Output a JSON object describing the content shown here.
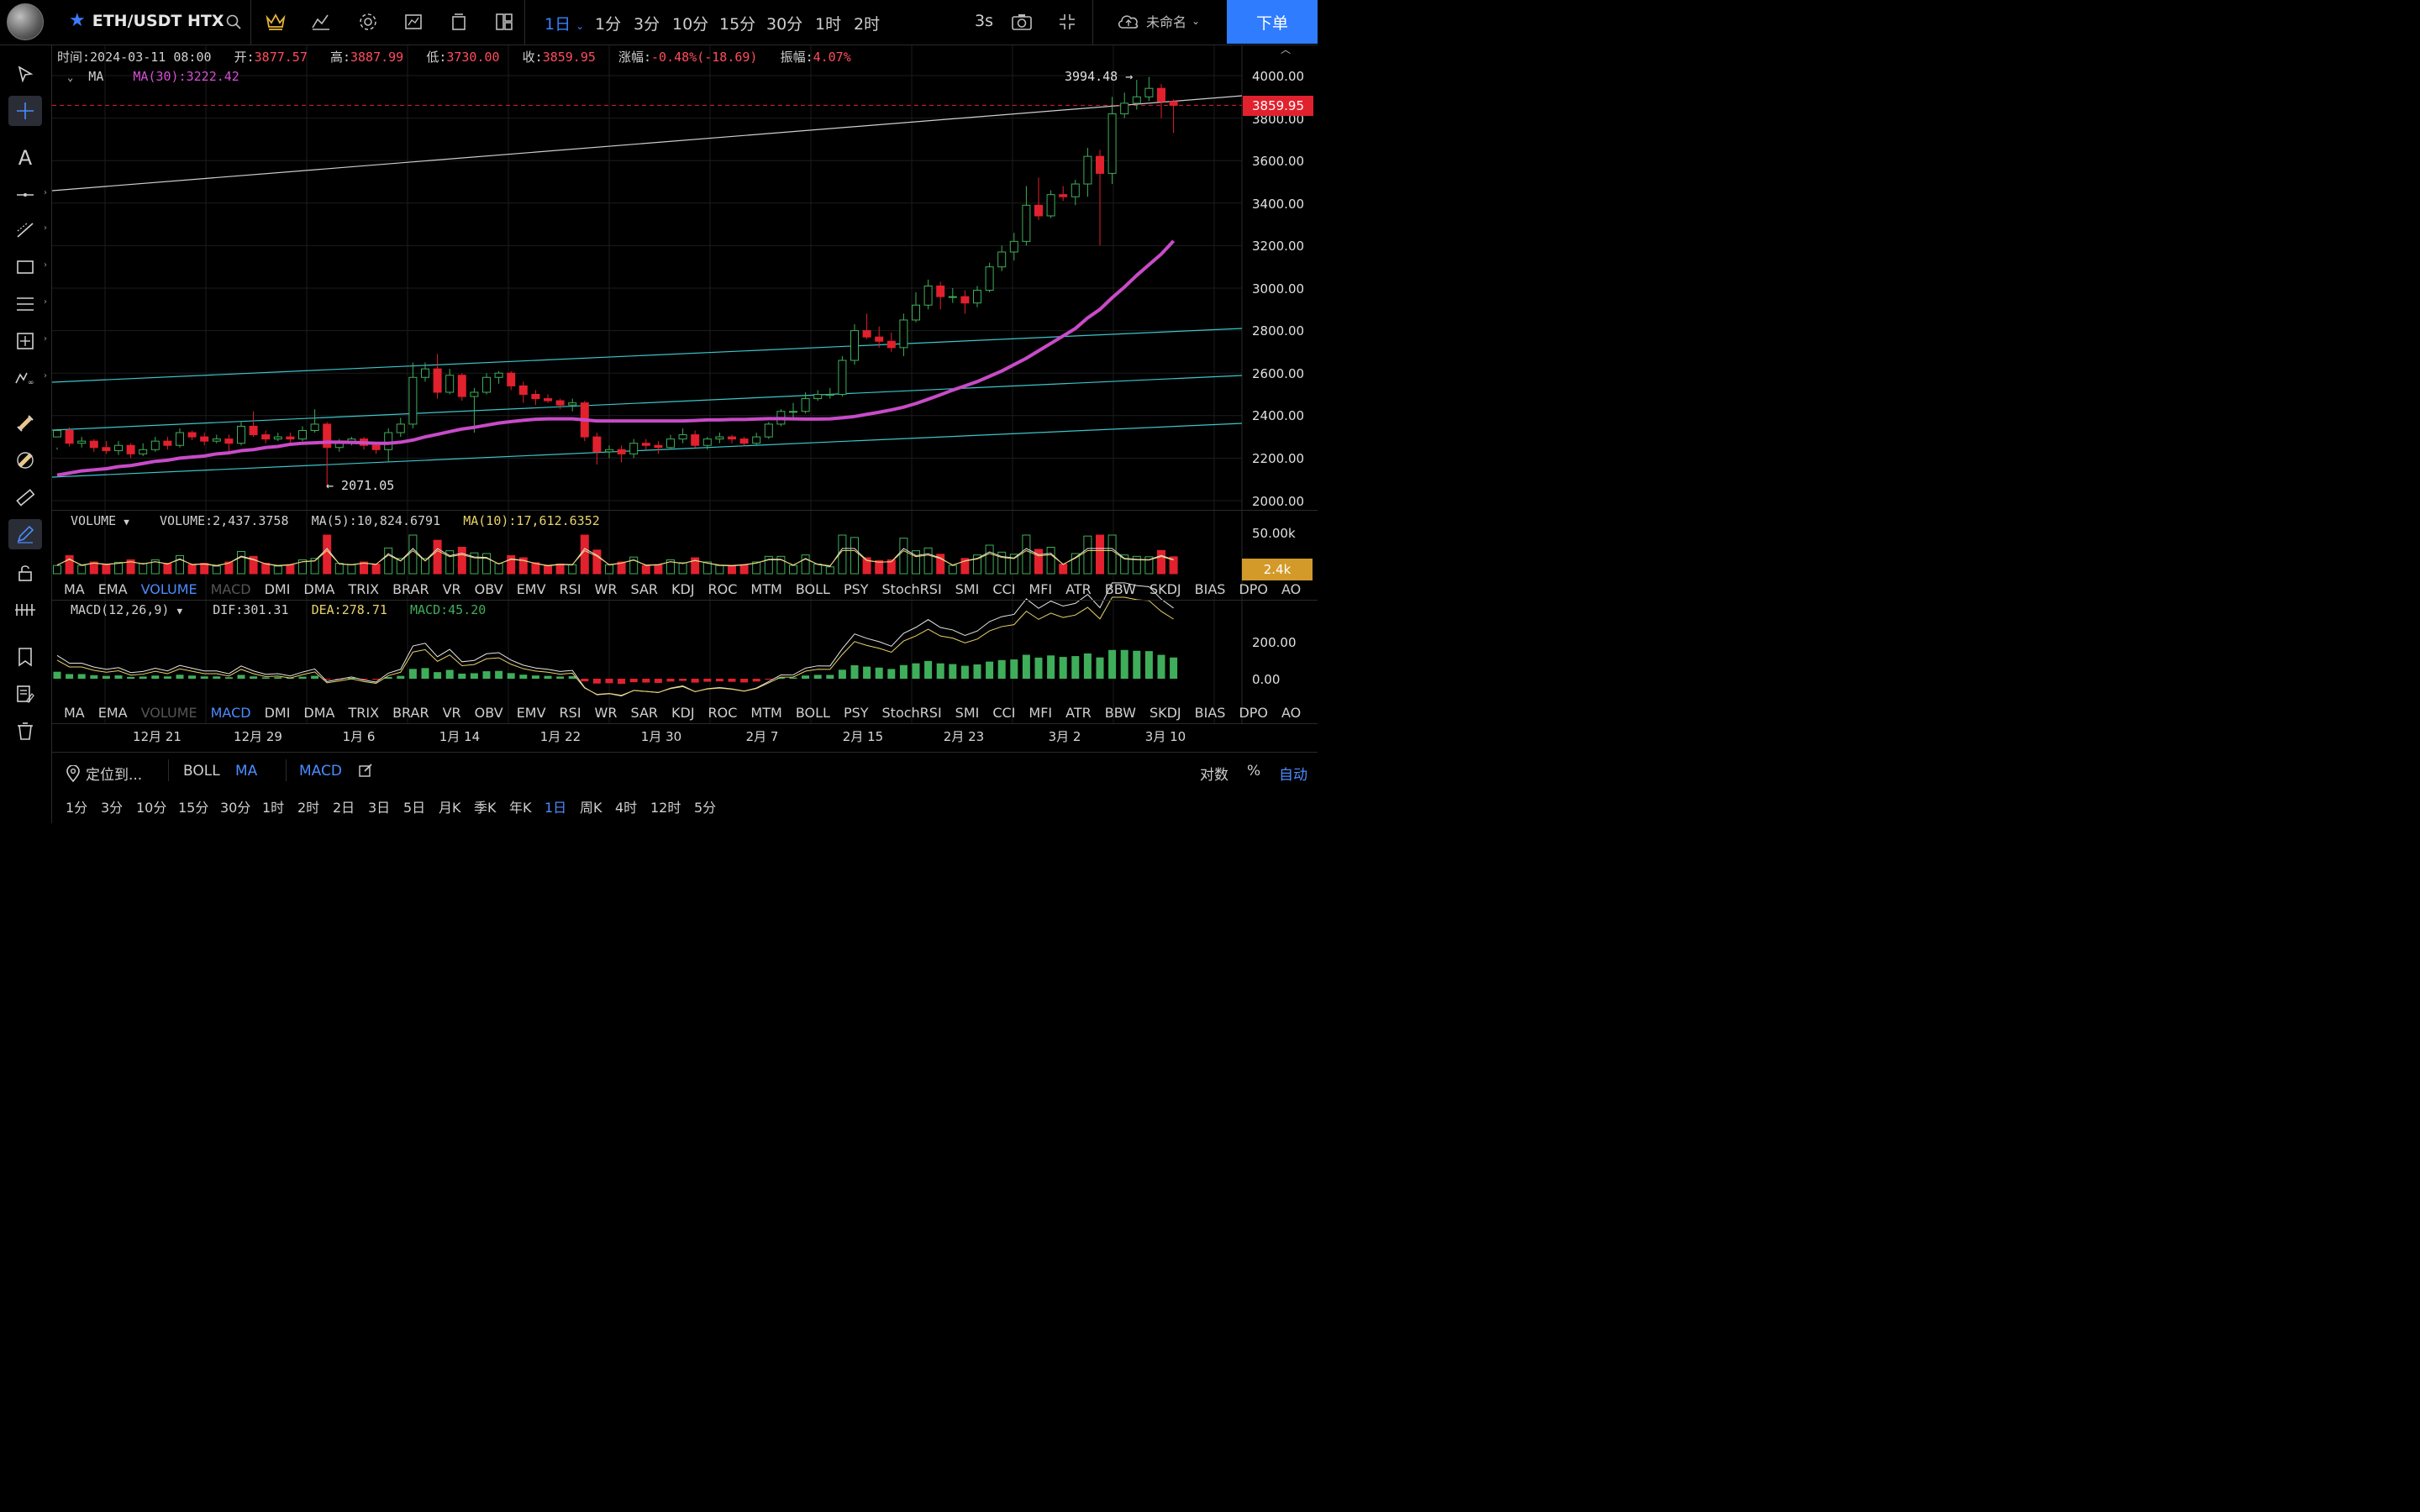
{
  "header": {
    "symbol": "ETH/USDT HTX",
    "timeframes": [
      "1日",
      "1分",
      "3分",
      "10分",
      "15分",
      "30分",
      "1时",
      "2时"
    ],
    "active_timeframe": "1日",
    "refresh": "3s",
    "cloud_name": "未命名",
    "order_button": "下单"
  },
  "legend": {
    "time_label": "时间:",
    "time": "2024-03-11 08:00",
    "open_label": "开:",
    "open": "3877.57",
    "high_label": "高:",
    "high": "3887.99",
    "low_label": "低:",
    "low": "3730.00",
    "close_label": "收:",
    "close": "3859.95",
    "change_label": "涨幅:",
    "change": "-0.48%(-18.69)",
    "amp_label": "振幅:",
    "amp": "4.07%",
    "ma_label": "MA",
    "ma_value": "MA(30):3222.42"
  },
  "price_axis": [
    "4000.00",
    "3800.00",
    "3600.00",
    "3400.00",
    "3200.00",
    "3000.00",
    "2800.00",
    "2600.00",
    "2400.00",
    "2200.00",
    "2000.00"
  ],
  "current_price": "3859.95",
  "annotations": {
    "high": "3994.48 →",
    "low": "← 2071.05"
  },
  "volume": {
    "label": "VOLUME",
    "value": "VOLUME:2,437.3758",
    "ma5": "MA(5):10,824.6791",
    "ma10": "MA(10):17,612.6352",
    "axis_top": "50.00k",
    "tag": "2.4k"
  },
  "macd": {
    "label": "MACD(12,26,9)",
    "dif": "DIF:301.31",
    "dea": "DEA:278.71",
    "macd": "MACD:45.20",
    "axis": [
      "200.00",
      "0.00"
    ]
  },
  "indicators": [
    "MA",
    "EMA",
    "VOLUME",
    "MACD",
    "DMI",
    "DMA",
    "TRIX",
    "BRAR",
    "VR",
    "OBV",
    "EMV",
    "RSI",
    "WR",
    "SAR",
    "KDJ",
    "ROC",
    "MTM",
    "BOLL",
    "PSY",
    "StochRSI",
    "SMI",
    "CCI",
    "MFI",
    "ATR",
    "BBW",
    "SKDJ",
    "BIAS",
    "DPO",
    "AO"
  ],
  "x_labels": [
    "12月 21",
    "12月 29",
    "1月 6",
    "1月 14",
    "1月 22",
    "1月 30",
    "2月 7",
    "2月 15",
    "2月 23",
    "3月 2",
    "3月 10"
  ],
  "bottom_bar": {
    "locate": "定位到...",
    "boll": "BOLL",
    "ma": "MA",
    "macd": "MACD",
    "log": "对数",
    "percent": "%",
    "auto": "自动"
  },
  "periods": [
    "1分",
    "3分",
    "10分",
    "15分",
    "30分",
    "1时",
    "2时",
    "2日",
    "3日",
    "5日",
    "月K",
    "季K",
    "年K",
    "1日",
    "周K",
    "4时",
    "12时",
    "5分"
  ],
  "active_period": "1日",
  "chart_data": {
    "type": "candlestick",
    "symbol": "ETH/USDT",
    "x_range": [
      "2023-12-15",
      "2024-03-11"
    ],
    "ylim": [
      2000,
      4000
    ],
    "candles": [
      [
        2300,
        2330,
        2250,
        2240
      ],
      [
        2330,
        2270,
        2345,
        2255
      ],
      [
        2270,
        2280,
        2300,
        2250
      ],
      [
        2280,
        2250,
        2290,
        2230
      ],
      [
        2250,
        2235,
        2280,
        2220
      ],
      [
        2235,
        2260,
        2280,
        2215
      ],
      [
        2260,
        2220,
        2270,
        2200
      ],
      [
        2220,
        2240,
        2270,
        2210
      ],
      [
        2240,
        2280,
        2300,
        2230
      ],
      [
        2280,
        2260,
        2300,
        2240
      ],
      [
        2260,
        2320,
        2340,
        2250
      ],
      [
        2320,
        2300,
        2330,
        2285
      ],
      [
        2300,
        2280,
        2320,
        2260
      ],
      [
        2280,
        2290,
        2310,
        2270
      ],
      [
        2290,
        2270,
        2310,
        2230
      ],
      [
        2270,
        2350,
        2370,
        2260
      ],
      [
        2350,
        2310,
        2420,
        2300
      ],
      [
        2310,
        2290,
        2330,
        2270
      ],
      [
        2290,
        2300,
        2320,
        2280
      ],
      [
        2300,
        2290,
        2320,
        2260
      ],
      [
        2290,
        2330,
        2350,
        2280
      ],
      [
        2330,
        2360,
        2430,
        2320
      ],
      [
        2360,
        2250,
        2370,
        2071
      ],
      [
        2250,
        2270,
        2290,
        2230
      ],
      [
        2270,
        2290,
        2300,
        2260
      ],
      [
        2290,
        2260,
        2300,
        2240
      ],
      [
        2260,
        2240,
        2270,
        2220
      ],
      [
        2240,
        2320,
        2340,
        2180
      ],
      [
        2320,
        2360,
        2390,
        2300
      ],
      [
        2360,
        2580,
        2650,
        2340
      ],
      [
        2580,
        2620,
        2650,
        2560
      ],
      [
        2620,
        2510,
        2690,
        2480
      ],
      [
        2510,
        2590,
        2620,
        2500
      ],
      [
        2590,
        2490,
        2600,
        2470
      ],
      [
        2490,
        2510,
        2530,
        2320
      ],
      [
        2510,
        2580,
        2600,
        2500
      ],
      [
        2580,
        2600,
        2610,
        2550
      ],
      [
        2600,
        2540,
        2610,
        2520
      ],
      [
        2540,
        2500,
        2560,
        2460
      ],
      [
        2500,
        2480,
        2520,
        2450
      ],
      [
        2480,
        2470,
        2500,
        2460
      ],
      [
        2470,
        2450,
        2480,
        2430
      ],
      [
        2450,
        2460,
        2480,
        2420
      ],
      [
        2460,
        2300,
        2470,
        2280
      ],
      [
        2300,
        2230,
        2320,
        2170
      ],
      [
        2230,
        2240,
        2260,
        2200
      ],
      [
        2240,
        2220,
        2260,
        2180
      ],
      [
        2220,
        2270,
        2290,
        2200
      ],
      [
        2270,
        2260,
        2290,
        2240
      ],
      [
        2260,
        2250,
        2280,
        2220
      ],
      [
        2250,
        2290,
        2310,
        2240
      ],
      [
        2290,
        2310,
        2340,
        2270
      ],
      [
        2310,
        2260,
        2330,
        2250
      ],
      [
        2260,
        2290,
        2300,
        2240
      ],
      [
        2290,
        2300,
        2320,
        2270
      ],
      [
        2300,
        2290,
        2310,
        2270
      ],
      [
        2290,
        2270,
        2300,
        2260
      ],
      [
        2270,
        2300,
        2320,
        2260
      ],
      [
        2300,
        2360,
        2370,
        2290
      ],
      [
        2360,
        2420,
        2430,
        2350
      ],
      [
        2420,
        2420,
        2460,
        2390
      ],
      [
        2420,
        2480,
        2510,
        2410
      ],
      [
        2480,
        2500,
        2520,
        2470
      ],
      [
        2500,
        2500,
        2530,
        2480
      ],
      [
        2500,
        2660,
        2680,
        2490
      ],
      [
        2660,
        2800,
        2830,
        2640
      ],
      [
        2800,
        2770,
        2880,
        2760
      ],
      [
        2770,
        2750,
        2820,
        2720
      ],
      [
        2750,
        2720,
        2790,
        2700
      ],
      [
        2720,
        2850,
        2880,
        2680
      ],
      [
        2850,
        2920,
        2980,
        2840
      ],
      [
        2920,
        3010,
        3040,
        2900
      ],
      [
        3010,
        2960,
        3030,
        2900
      ],
      [
        2960,
        2960,
        3000,
        2930
      ],
      [
        2960,
        2930,
        2990,
        2880
      ],
      [
        2930,
        2990,
        3010,
        2910
      ],
      [
        2990,
        3100,
        3120,
        2980
      ],
      [
        3100,
        3170,
        3200,
        3080
      ],
      [
        3170,
        3220,
        3260,
        3130
      ],
      [
        3220,
        3390,
        3480,
        3200
      ],
      [
        3390,
        3340,
        3520,
        3320
      ],
      [
        3340,
        3440,
        3460,
        3330
      ],
      [
        3440,
        3430,
        3480,
        3410
      ],
      [
        3430,
        3490,
        3510,
        3390
      ],
      [
        3490,
        3620,
        3660,
        3430
      ],
      [
        3620,
        3540,
        3650,
        3200
      ],
      [
        3540,
        3820,
        3900,
        3490
      ],
      [
        3820,
        3870,
        3920,
        3800
      ],
      [
        3870,
        3900,
        3980,
        3840
      ],
      [
        3900,
        3940,
        3994,
        3880
      ],
      [
        3940,
        3878,
        3960,
        3800
      ],
      [
        3878,
        3860,
        3888,
        3730
      ]
    ],
    "ma30": [
      [
        2120,
        2130,
        2140,
        2145,
        2150,
        2160,
        2165,
        2175,
        2185,
        2190,
        2200,
        2205,
        2210,
        2220,
        2225,
        2235,
        2240,
        2250,
        2255,
        2265,
        2270,
        2272,
        2275,
        2275,
        2274,
        2272,
        2270,
        2270,
        2275,
        2285,
        2300,
        2312,
        2325,
        2337,
        2345,
        2355,
        2365,
        2372,
        2378,
        2383,
        2385,
        2385,
        2385,
        2380,
        2375,
        2375,
        2375,
        2375,
        2375,
        2375,
        2375,
        2375,
        2377,
        2380,
        2380,
        2382,
        2382,
        2384,
        2386,
        2386,
        2385,
        2384,
        2384,
        2385,
        2390,
        2396,
        2406,
        2416,
        2427,
        2440,
        2457,
        2477,
        2498,
        2520,
        2540,
        2560,
        2585,
        2610,
        2640,
        2670,
        2705,
        2740,
        2775,
        2810,
        2860,
        2900,
        2955,
        3005,
        3060,
        3110,
        3160,
        3222
      ]
    ],
    "lines": [
      "ascending channel and trend lines drawn on chart"
    ]
  }
}
